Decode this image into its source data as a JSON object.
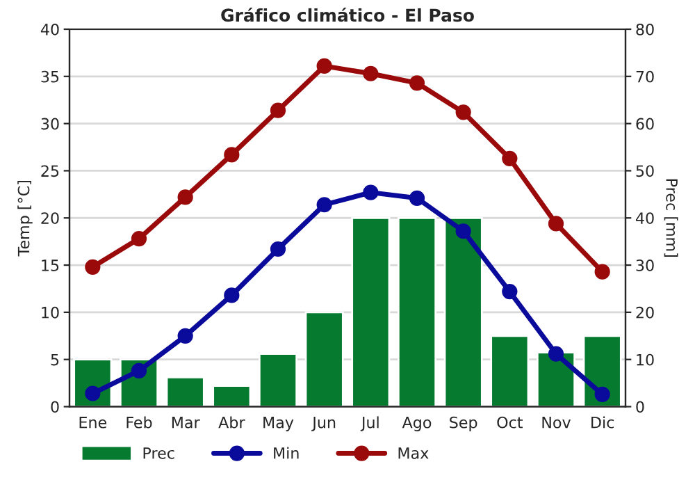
{
  "chart_data": {
    "type": "bar",
    "title": "Gráfico climático - El Paso",
    "ylabel": "Temp [°C]",
    "y2label": "Prec [mm]",
    "categories": [
      "Ene",
      "Feb",
      "Mar",
      "Abr",
      "May",
      "Jun",
      "Jul",
      "Ago",
      "Sep",
      "Oct",
      "Nov",
      "Dic"
    ],
    "series": [
      {
        "name": "Prec",
        "axis": "y2",
        "color": "#067a2f",
        "values": [
          10,
          10,
          6.2,
          4.4,
          11.2,
          20,
          40,
          40,
          40,
          15,
          11.5,
          15
        ]
      },
      {
        "name": "Min",
        "type": "line",
        "axis": "y",
        "color": "#0a0a9b",
        "values": [
          1.4,
          3.8,
          7.5,
          11.8,
          16.7,
          21.4,
          22.7,
          22.1,
          18.6,
          12.2,
          5.6,
          1.3
        ]
      },
      {
        "name": "Max",
        "type": "line",
        "axis": "y",
        "color": "#9b0a0a",
        "values": [
          14.8,
          17.8,
          22.2,
          26.7,
          31.4,
          36.1,
          35.3,
          34.3,
          31.2,
          26.3,
          19.4,
          14.3
        ]
      }
    ],
    "ylim": [
      0,
      40
    ],
    "yticks": [
      0,
      5,
      10,
      15,
      20,
      25,
      30,
      35,
      40
    ],
    "y2lim": [
      0,
      80
    ],
    "y2ticks": [
      0,
      10,
      20,
      30,
      40,
      50,
      60,
      70,
      80
    ],
    "grid": true,
    "legend": "bottom",
    "marker": "circle",
    "line_style": "solid"
  }
}
